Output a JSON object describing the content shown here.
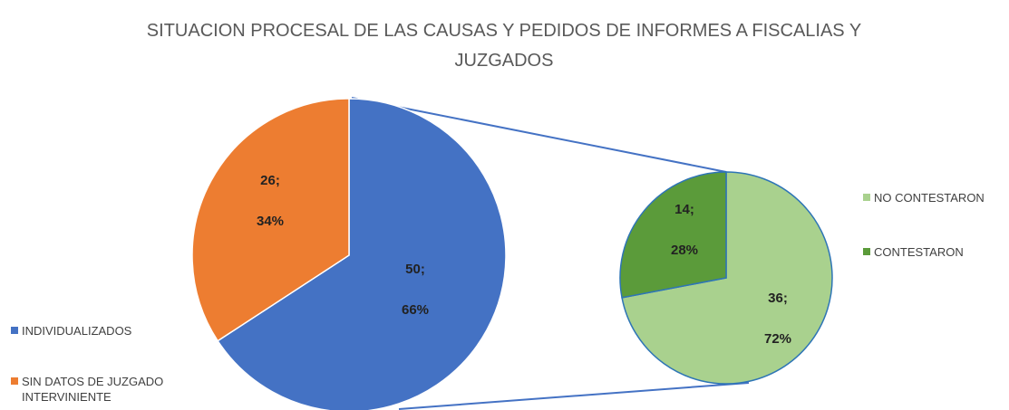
{
  "chart_data": {
    "type": "pie-of-pie",
    "title": "SITUACION PROCESAL DE LAS CAUSAS Y PEDIDOS DE INFORMES A FISCALIAS Y JUZGADOS",
    "categories": [
      "INDIVIDUALIZADOS",
      "SIN DATOS DE JUZGADO INTERVINIENTE"
    ],
    "values": [
      50,
      26
    ],
    "value_labels": [
      "50;",
      "26;"
    ],
    "percentages": [
      66,
      34
    ],
    "percentage_labels": [
      "66%",
      "34%"
    ],
    "colors": [
      "#4472c4",
      "#ed7d31"
    ],
    "secondary": {
      "categories": [
        "NO CONTESTARON",
        "CONTESTARON"
      ],
      "values": [
        36,
        14
      ],
      "value_labels": [
        "36;",
        "14;"
      ],
      "percentages": [
        72,
        28
      ],
      "percentage_labels": [
        "72%",
        "28%"
      ],
      "colors": [
        "#a9d18e",
        "#5b9b3a"
      ]
    }
  }
}
